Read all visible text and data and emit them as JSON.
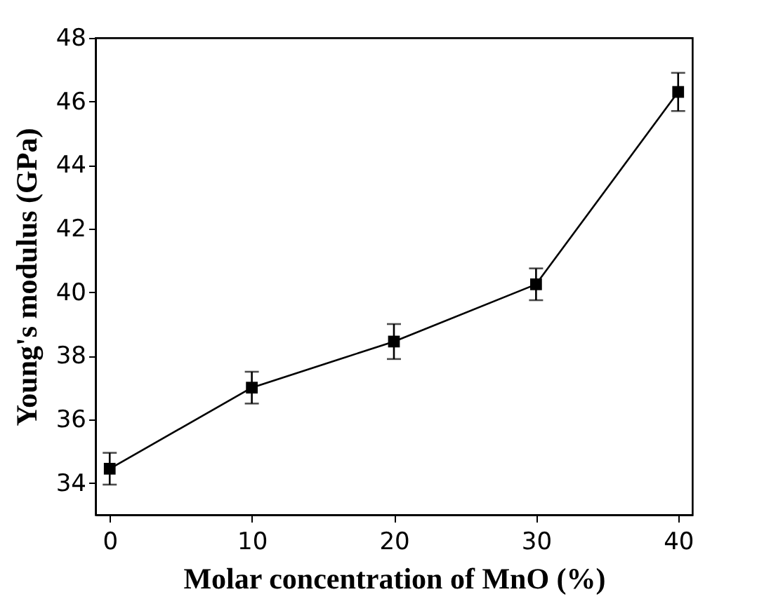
{
  "chart_data": {
    "type": "line",
    "xlabel": "Molar concentration of MnO (%)",
    "ylabel": "Young's modulus (GPa)",
    "x": [
      0,
      10,
      20,
      30,
      40
    ],
    "series": [
      {
        "color": "#000000",
        "values": [
          34.45,
          37.0,
          38.45,
          40.25,
          46.3
        ],
        "errors": [
          0.5,
          0.5,
          0.55,
          0.5,
          0.6
        ]
      }
    ],
    "xlim": [
      -1,
      41
    ],
    "ylim": [
      33,
      48
    ],
    "xticks": [
      0,
      10,
      20,
      30,
      40
    ],
    "yticks": [
      34,
      36,
      38,
      40,
      42,
      44,
      46,
      48
    ],
    "marker": "square",
    "line_style": "solid",
    "grid": false
  }
}
